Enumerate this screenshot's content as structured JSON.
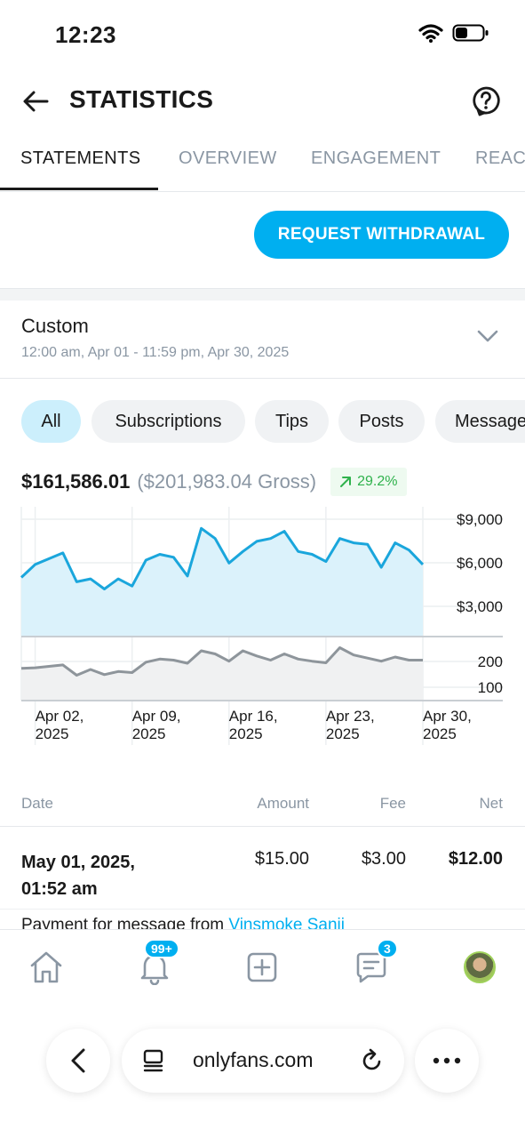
{
  "status": {
    "time": "12:23"
  },
  "header": {
    "title": "STATISTICS"
  },
  "tabs": [
    {
      "label": "STATEMENTS",
      "active": true
    },
    {
      "label": "OVERVIEW"
    },
    {
      "label": "ENGAGEMENT"
    },
    {
      "label": "REACH"
    }
  ],
  "actions": {
    "withdraw_label": "REQUEST WITHDRAWAL"
  },
  "period": {
    "label": "Custom",
    "range": "12:00 am, Apr 01 - 11:59 pm, Apr 30, 2025"
  },
  "filters": [
    "All",
    "Subscriptions",
    "Tips",
    "Posts",
    "Messages"
  ],
  "totals": {
    "net": "$161,586.01",
    "gross": "($201,983.04 Gross)",
    "growth": "29.2%"
  },
  "chart_data": {
    "type": "area",
    "x": [
      "Apr 01",
      "Apr 02",
      "Apr 03",
      "Apr 04",
      "Apr 05",
      "Apr 06",
      "Apr 07",
      "Apr 08",
      "Apr 09",
      "Apr 10",
      "Apr 11",
      "Apr 12",
      "Apr 13",
      "Apr 14",
      "Apr 15",
      "Apr 16",
      "Apr 17",
      "Apr 18",
      "Apr 19",
      "Apr 20",
      "Apr 21",
      "Apr 22",
      "Apr 23",
      "Apr 24",
      "Apr 25",
      "Apr 26",
      "Apr 27",
      "Apr 28",
      "Apr 29",
      "Apr 30"
    ],
    "x_ticks": [
      "Apr 02, 2025",
      "Apr 09, 2025",
      "Apr 16, 2025",
      "Apr 23, 2025",
      "Apr 30, 2025"
    ],
    "series": [
      {
        "values": [
          4100,
          5000,
          5400,
          5800,
          3800,
          4000,
          3300,
          4000,
          3500,
          5300,
          5700,
          5500,
          4200,
          7500,
          6800,
          5100,
          5900,
          6600,
          6800,
          7300,
          5900,
          5700,
          5200,
          6800,
          6500,
          6400,
          4800,
          6500,
          6000,
          5000
        ],
        "ylim": [
          0,
          9000
        ],
        "yticks": [
          "$9,000",
          "$6,000",
          "$3,000"
        ]
      },
      {
        "values": [
          155,
          158,
          165,
          172,
          122,
          150,
          125,
          140,
          135,
          185,
          200,
          195,
          180,
          240,
          225,
          190,
          240,
          215,
          195,
          225,
          200,
          190,
          182,
          255,
          220,
          205,
          190,
          210,
          195,
          195
        ],
        "ylim": [
          0,
          300
        ],
        "yticks": [
          "200",
          "100"
        ]
      }
    ],
    "grid": true
  },
  "table": {
    "headers": {
      "date": "Date",
      "amount": "Amount",
      "fee": "Fee",
      "net": "Net"
    },
    "rows": [
      {
        "date": "May 01, 2025,\n01:52 am",
        "amount": "$15.00",
        "fee": "$3.00",
        "net": "$12.00"
      }
    ],
    "payment_prefix": "Payment for message from",
    "payment_user": "Vinsmoke Sanji"
  },
  "nav": {
    "notifications_badge": "99+",
    "messages_badge": "3"
  },
  "browser": {
    "url": "onlyfans.com"
  },
  "colors": {
    "accent": "#00aff0",
    "growth": "#2fb24c",
    "muted": "#8a96a3"
  }
}
